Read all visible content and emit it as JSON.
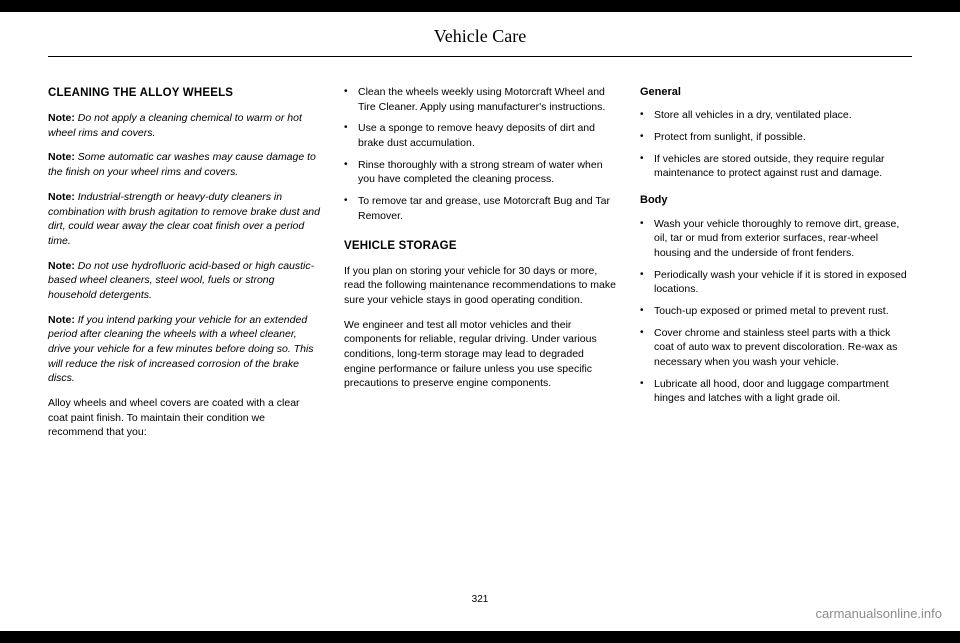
{
  "header": {
    "title": "Vehicle Care"
  },
  "page_number": "321",
  "watermark": "carmanualsonline.info",
  "col1": {
    "heading": "CLEANING THE ALLOY WHEELS",
    "notes": [
      {
        "label": "Note:",
        "text": " Do not apply a cleaning chemical to warm or hot wheel rims and covers."
      },
      {
        "label": "Note:",
        "text": " Some automatic car washes may cause damage to the finish on your wheel rims and covers."
      },
      {
        "label": "Note:",
        "text": " Industrial-strength or heavy-duty cleaners in combination with brush agitation to remove brake dust and dirt, could wear away the clear coat finish over a period time."
      },
      {
        "label": "Note:",
        "text": " Do not use hydrofluoric acid-based or high caustic-based wheel cleaners, steel wool, fuels or strong household detergents."
      },
      {
        "label": "Note:",
        "text": " If you intend parking your vehicle for an extended period after cleaning the wheels with a wheel cleaner, drive your vehicle for a few minutes before doing so. This will reduce the risk of increased corrosion of the brake discs."
      }
    ],
    "body_para": "Alloy wheels and wheel covers are coated with a clear coat paint finish. To maintain their condition we recommend that you:"
  },
  "col2": {
    "bullets_top": [
      "Clean the wheels weekly using Motorcraft Wheel and Tire Cleaner. Apply using manufacturer's instructions.",
      "Use a sponge to remove heavy deposits of dirt and brake dust accumulation.",
      "Rinse thoroughly with a strong stream of water when you have completed the cleaning process.",
      "To remove tar and grease, use Motorcraft Bug and Tar Remover."
    ],
    "heading2": "VEHICLE STORAGE",
    "para1": "If you plan on storing your vehicle for 30 days or more, read the following maintenance recommendations to make sure your vehicle stays in good operating condition.",
    "para2": "We engineer and test all motor vehicles and their components for reliable, regular driving. Under various conditions, long-term storage may lead to degraded engine performance or failure unless you use specific precautions to preserve engine components."
  },
  "col3": {
    "sub1": "General",
    "bullets1": [
      "Store all vehicles in a dry, ventilated place.",
      "Protect from sunlight, if possible.",
      "If vehicles are stored outside, they require regular maintenance to protect against rust and damage."
    ],
    "sub2": "Body",
    "bullets2": [
      "Wash your vehicle thoroughly to remove dirt, grease, oil, tar or mud from exterior surfaces, rear-wheel housing and the underside of front fenders.",
      "Periodically wash your vehicle if it is stored in exposed locations.",
      "Touch-up exposed or primed metal to prevent rust.",
      "Cover chrome and stainless steel parts with a thick coat of auto wax to prevent discoloration. Re-wax as necessary when you wash your vehicle.",
      "Lubricate all hood, door and luggage compartment hinges and latches with a light grade oil."
    ]
  }
}
